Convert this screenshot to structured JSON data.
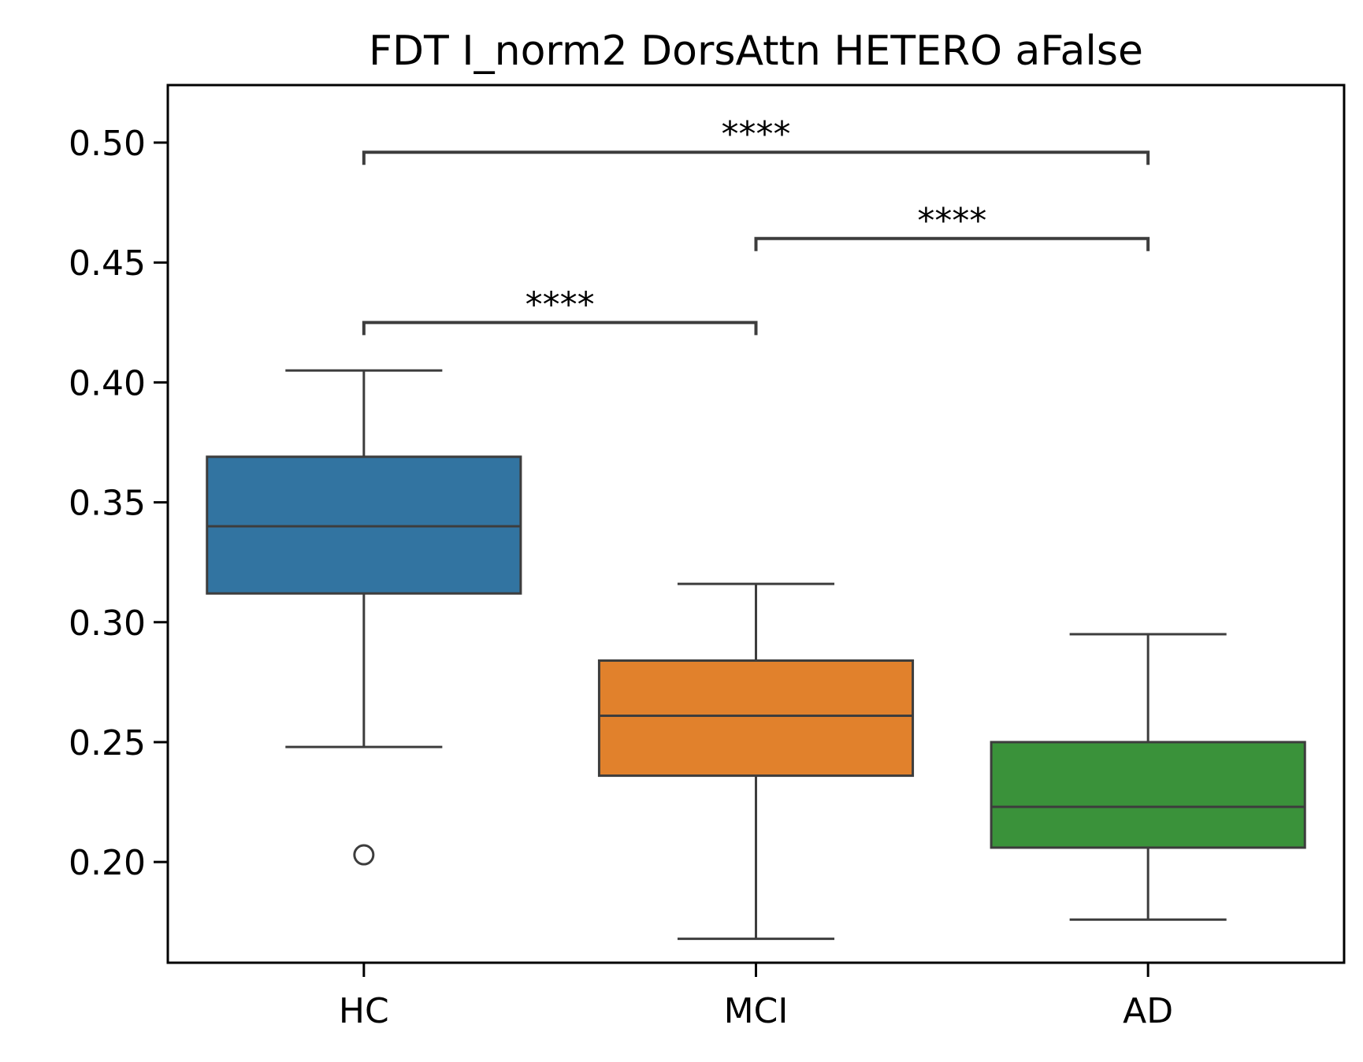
{
  "chart_data": {
    "type": "box",
    "title": "FDT I_norm2 DorsAttn HETERO aFalse",
    "xlabel": "",
    "ylabel": "",
    "categories": [
      "HC",
      "MCI",
      "AD"
    ],
    "ylim": [
      0.158,
      0.524
    ],
    "yticks": [
      0.2,
      0.25,
      0.3,
      0.35,
      0.4,
      0.45,
      0.5
    ],
    "ytick_labels": [
      "0.20",
      "0.25",
      "0.30",
      "0.35",
      "0.40",
      "0.45",
      "0.50"
    ],
    "grid": false,
    "legend": "none",
    "series": [
      {
        "category": "HC",
        "color": "#3274a1",
        "whisker_low": 0.248,
        "q1": 0.312,
        "median": 0.34,
        "q3": 0.369,
        "whisker_high": 0.405,
        "outliers": [
          0.203
        ]
      },
      {
        "category": "MCI",
        "color": "#e1812c",
        "whisker_low": 0.168,
        "q1": 0.236,
        "median": 0.261,
        "q3": 0.284,
        "whisker_high": 0.316,
        "outliers": []
      },
      {
        "category": "AD",
        "color": "#3a923a",
        "whisker_low": 0.176,
        "q1": 0.206,
        "median": 0.223,
        "q3": 0.25,
        "whisker_high": 0.295,
        "outliers": []
      }
    ],
    "annotations": [
      {
        "from": "HC",
        "to": "MCI",
        "y": 0.425,
        "label": "****"
      },
      {
        "from": "MCI",
        "to": "AD",
        "y": 0.46,
        "label": "****"
      },
      {
        "from": "HC",
        "to": "AD",
        "y": 0.496,
        "label": "****"
      }
    ]
  }
}
